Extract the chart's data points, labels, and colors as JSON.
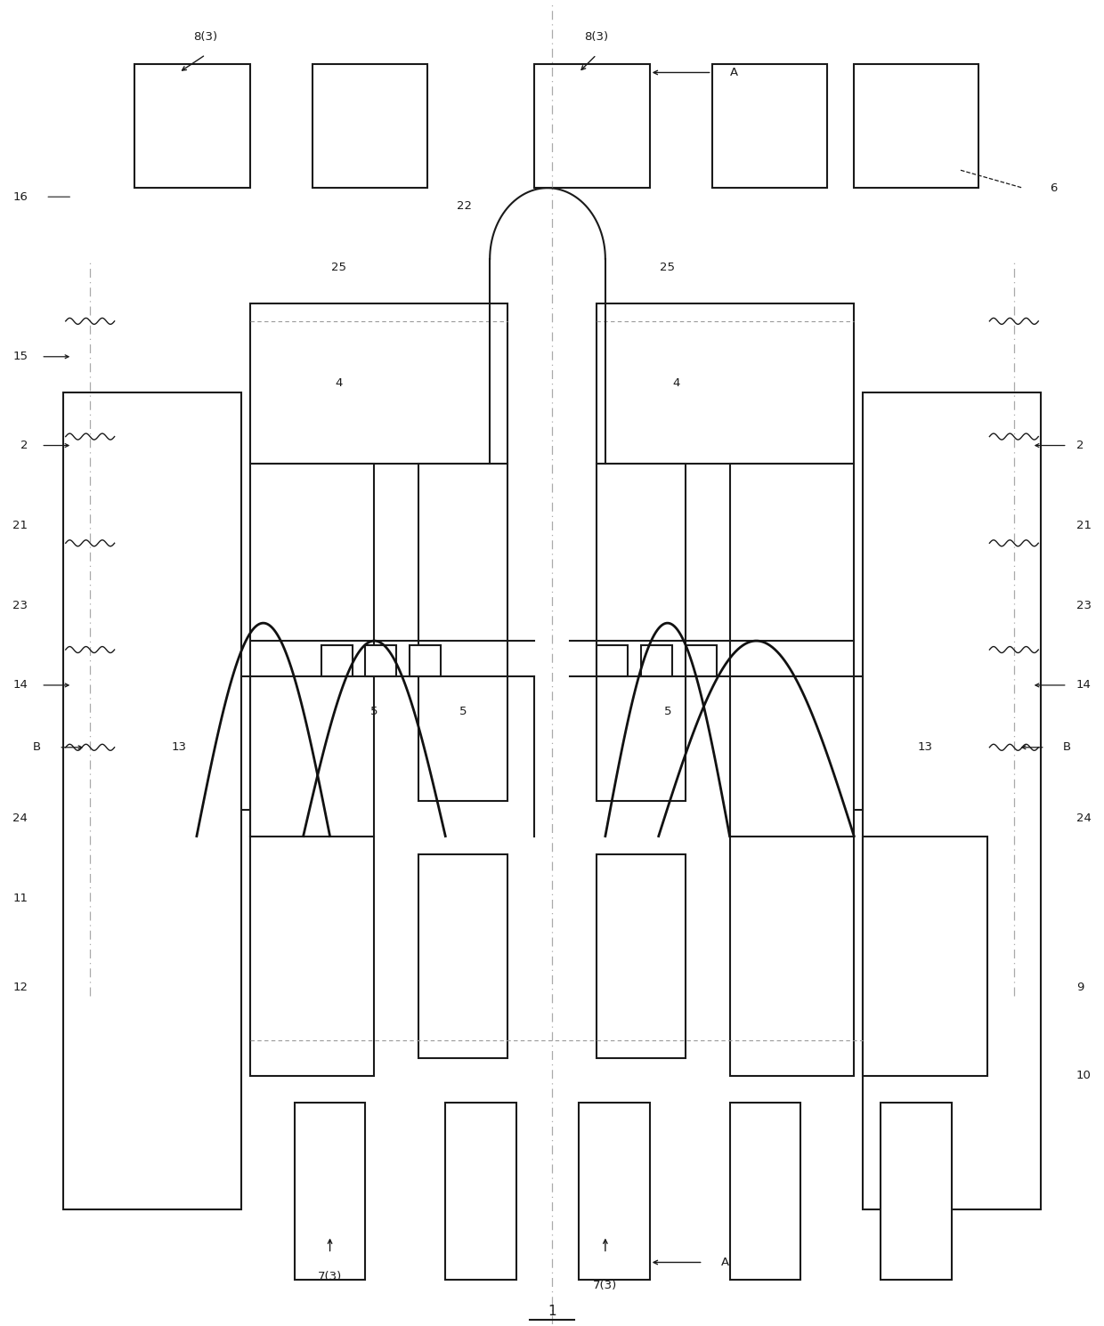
{
  "fig_width": 12.4,
  "fig_height": 14.9,
  "bg_color": "#ffffff",
  "lc": "#1a1a1a",
  "lw": 1.5,
  "title": "1",
  "labels": {
    "8_3_left": "8(3)",
    "8_3_right": "8(3)",
    "16": "16",
    "25_left": "25",
    "25_right": "25",
    "22": "22",
    "4_left": "4",
    "4_right": "4",
    "6": "6",
    "15": "15",
    "2_left": "2",
    "2_right": "2",
    "21_left": "21",
    "21_right": "21",
    "23_left": "23",
    "23_right": "23",
    "14_left": "14",
    "14_right": "14",
    "B_left": "B",
    "B_right": "B",
    "13_left": "13",
    "13_right": "13",
    "5_a": "5",
    "5_b": "5",
    "5_c": "5",
    "24_left": "24",
    "24_right": "24",
    "11": "11",
    "12": "12",
    "9": "9",
    "10": "10",
    "7_3_left": "7(3)",
    "7_3_right": "7(3)",
    "A_top": "A",
    "A_bottom": "A"
  }
}
